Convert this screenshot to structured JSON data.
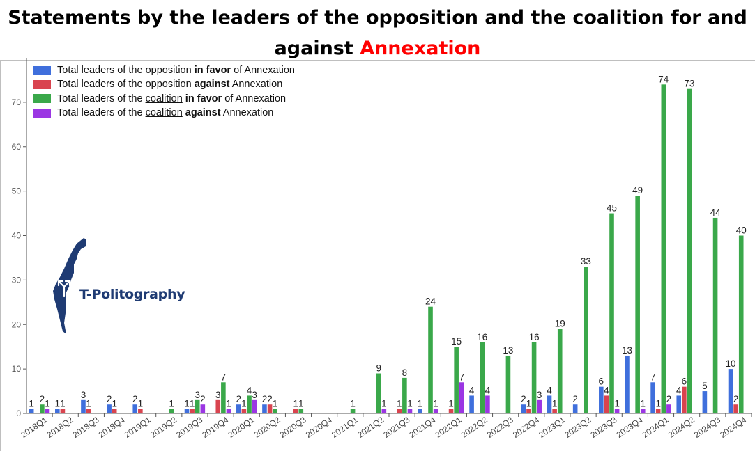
{
  "title": {
    "line1": "Statements by the leaders of the opposition and the coalition for and",
    "line2_prefix": "against ",
    "line2_accent": "Annexation"
  },
  "logo": {
    "text": "T-Politography"
  },
  "legend": [
    {
      "pre": "Total leaders of the ",
      "u": "opposition",
      "b": " in favor",
      "post": " of Annexation",
      "color": "#3f6fdc"
    },
    {
      "pre": "Total leaders of the ",
      "u": "opposition",
      "b": " against",
      "post": " Annexation",
      "color": "#d9444f"
    },
    {
      "pre": "Total leaders of the ",
      "u": "coalition",
      "b": " in favor",
      "post": " of Annexation",
      "color": "#3aa84a"
    },
    {
      "pre": "Total leaders of the ",
      "u": "coalition",
      "b": " against",
      "post": " Annexation",
      "color": "#9b36e3"
    }
  ],
  "chart_data": {
    "type": "bar",
    "ylim": [
      0,
      80
    ],
    "yticks": [
      0,
      10,
      20,
      30,
      40,
      50,
      60,
      70
    ],
    "grid": false,
    "legend_position": "top-left",
    "categories": [
      "2018Q1",
      "2018Q2",
      "2018Q3",
      "2018Q4",
      "2019Q1",
      "2019Q2",
      "2019Q3",
      "2019Q4",
      "2020Q1",
      "2020Q2",
      "2020Q3",
      "2020Q4",
      "2021Q1",
      "2021Q2",
      "2021Q3",
      "2021Q4",
      "2022Q1",
      "2022Q2",
      "2022Q3",
      "2022Q4",
      "2023Q1",
      "2023Q2",
      "2023Q3",
      "2023Q4",
      "2024Q1",
      "2024Q2",
      "2024Q3",
      "2024Q4"
    ],
    "series": [
      {
        "name": "Total leaders of the opposition in favor of Annexation",
        "color": "#3f6fdc",
        "values": [
          1,
          1,
          3,
          2,
          2,
          null,
          1,
          null,
          2,
          2,
          null,
          null,
          null,
          null,
          null,
          1,
          null,
          4,
          null,
          2,
          4,
          2,
          6,
          13,
          7,
          4,
          5,
          10
        ]
      },
      {
        "name": "Total leaders of the opposition against Annexation",
        "color": "#d9444f",
        "values": [
          null,
          1,
          1,
          1,
          1,
          null,
          1,
          3,
          1,
          2,
          1,
          null,
          null,
          null,
          1,
          null,
          1,
          null,
          null,
          1,
          1,
          null,
          4,
          null,
          1,
          6,
          null,
          2
        ]
      },
      {
        "name": "Total leaders of the coalition in favor of Annexation",
        "color": "#3aa84a",
        "values": [
          2,
          null,
          null,
          null,
          null,
          1,
          3,
          7,
          4,
          1,
          1,
          null,
          1,
          9,
          8,
          24,
          15,
          16,
          13,
          16,
          19,
          33,
          45,
          49,
          74,
          73,
          44,
          40
        ]
      },
      {
        "name": "Total leaders of the coalition against Annexation",
        "color": "#9b36e3",
        "values": [
          1,
          null,
          null,
          null,
          null,
          null,
          2,
          1,
          3,
          null,
          null,
          null,
          null,
          1,
          1,
          1,
          7,
          4,
          null,
          3,
          null,
          null,
          1,
          1,
          2,
          null,
          null,
          null
        ]
      }
    ]
  }
}
